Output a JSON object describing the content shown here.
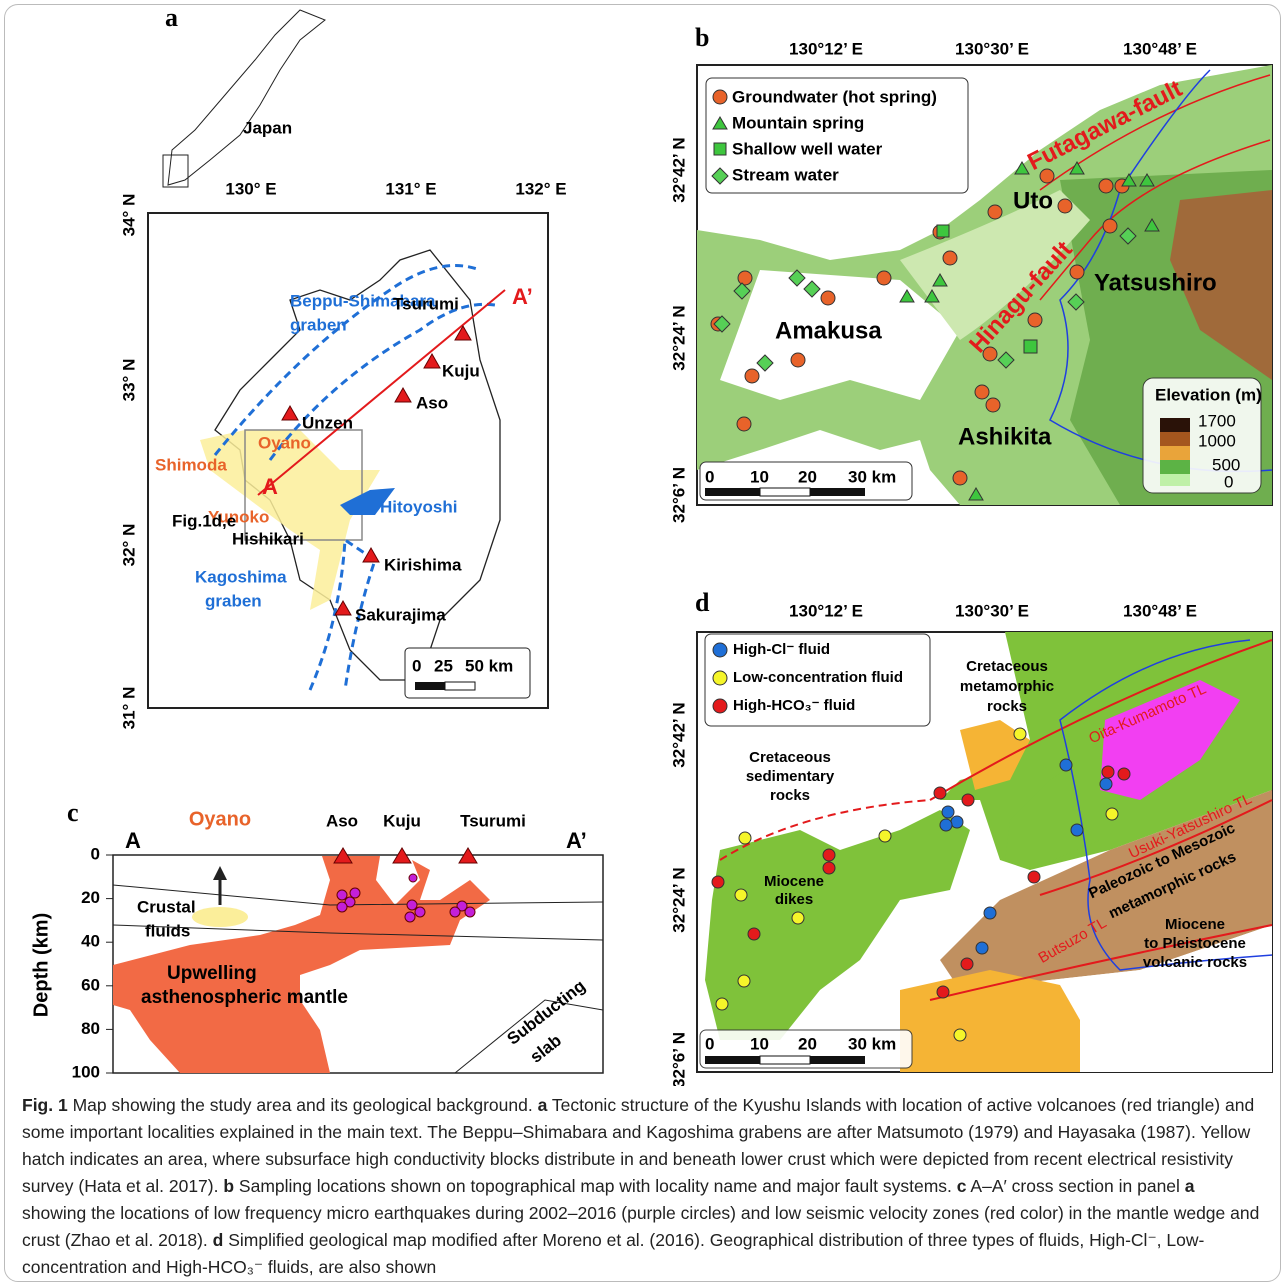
{
  "panel_a": {
    "label": "a",
    "inset_label": "Japan",
    "lon_ticks": [
      "130° E",
      "131° E",
      "132° E"
    ],
    "lat_ticks": [
      "34° N",
      "33° N",
      "32° N",
      "31° N"
    ],
    "beppu_graben": [
      "Beppu-Shimabara",
      "graben"
    ],
    "kagoshima_graben": [
      "Kagoshima",
      "graben"
    ],
    "volcanoes": [
      "Tsurumi",
      "Kuju",
      "Aso",
      "Unzen",
      "Kirishima",
      "Sakurajima"
    ],
    "hot_springs": [
      "Oyano",
      "Shimoda",
      "Yunoko"
    ],
    "places": [
      "Hitoyoshi",
      "Hishikari"
    ],
    "section_ends": [
      "A",
      "A’"
    ],
    "box_label": "Fig.1d,e",
    "scale": [
      "0",
      "25",
      "50 km"
    ]
  },
  "panel_b": {
    "label": "b",
    "lon_ticks": [
      "130°12’ E",
      "130°30’ E",
      "130°48’ E"
    ],
    "lat_ticks": [
      "32°42’ N",
      "32°24’ N",
      "32°6’ N"
    ],
    "legend": [
      "Groundwater (hot spring)",
      "Mountain spring",
      "Shallow well water",
      "Stream water"
    ],
    "faults": [
      "Futagawa-fault",
      "Hinagu-fault"
    ],
    "places": [
      "Uto",
      "Amakusa",
      "Yatsushiro",
      "Ashikita"
    ],
    "elevation_title": "Elevation (m)",
    "elevation_ticks": [
      "1700",
      "1000",
      "500",
      "0"
    ],
    "scale": [
      "0",
      "10",
      "20",
      "30 km"
    ]
  },
  "panel_c": {
    "label": "c",
    "section_ends": [
      "A",
      "A’"
    ],
    "hot_spring": "Oyano",
    "volcanoes": [
      "Aso",
      "Kuju",
      "Tsurumi"
    ],
    "y_label": "Depth (km)",
    "y_ticks": [
      "0",
      "20",
      "40",
      "60",
      "80",
      "100"
    ],
    "crustal_fluids": [
      "Crustal",
      "fluids"
    ],
    "mantle": [
      "Upwelling",
      "asthenospheric mantle"
    ],
    "slab": [
      "Subducting",
      "slab"
    ]
  },
  "panel_d": {
    "label": "d",
    "lon_ticks": [
      "130°12’ E",
      "130°30’ E",
      "130°48’ E"
    ],
    "lat_ticks": [
      "32°42’ N",
      "32°24’ N",
      "32°6’ N"
    ],
    "legend": [
      "High-Cl⁻ fluid",
      "Low-concentration fluid",
      "High-HCO₃⁻ fluid"
    ],
    "rocks": [
      [
        "Cretaceous",
        "metamorphic",
        "rocks"
      ],
      [
        "Cretaceous",
        "sedimentary",
        "rocks"
      ],
      [
        "Miocene",
        "dikes"
      ],
      [
        "Paleozoic to Mesozoic",
        "metamorphic rocks"
      ],
      [
        "Miocene",
        "to Pleistocene",
        "volcanic rocks"
      ]
    ],
    "tectonic_lines": [
      "Oita-Kumamoto TL",
      "Usuki-Yatsushiro TL",
      "Butsuzo TL"
    ],
    "scale": [
      "0",
      "10",
      "20",
      "30 km"
    ]
  },
  "caption": {
    "lead": "Fig. 1",
    "parts": [
      "  Map showing the study area and its geological background. ",
      "a",
      " Tectonic structure of the Kyushu Islands with location of active volcanoes (red triangle) and some important localities explained in the main text. The Beppu–Shimabara and Kagoshima grabens are after Matsumoto (1979) and Hayasaka (1987). Yellow hatch indicates an area, where subsurface high conductivity blocks distribute in and beneath lower crust which were depicted from recent electrical resistivity survey (Hata et al. 2017). ",
      "b",
      " Sampling locations shown on topographical map with locality name and major fault systems. ",
      "c",
      " A–A′ cross section in panel ",
      "a",
      " showing the locations of low frequency micro earthquakes during 2002–2016 (purple circles) and low seismic velocity zones (red color) in the mantle wedge and crust (Zhao et al. 2018). ",
      "d",
      " Simplified geological map modified after Moreno et al. (2016). Geographical distribution of three types of fluids, High-Cl⁻, Low-concentration and High-HCO₃⁻ fluids, are also shown"
    ]
  }
}
